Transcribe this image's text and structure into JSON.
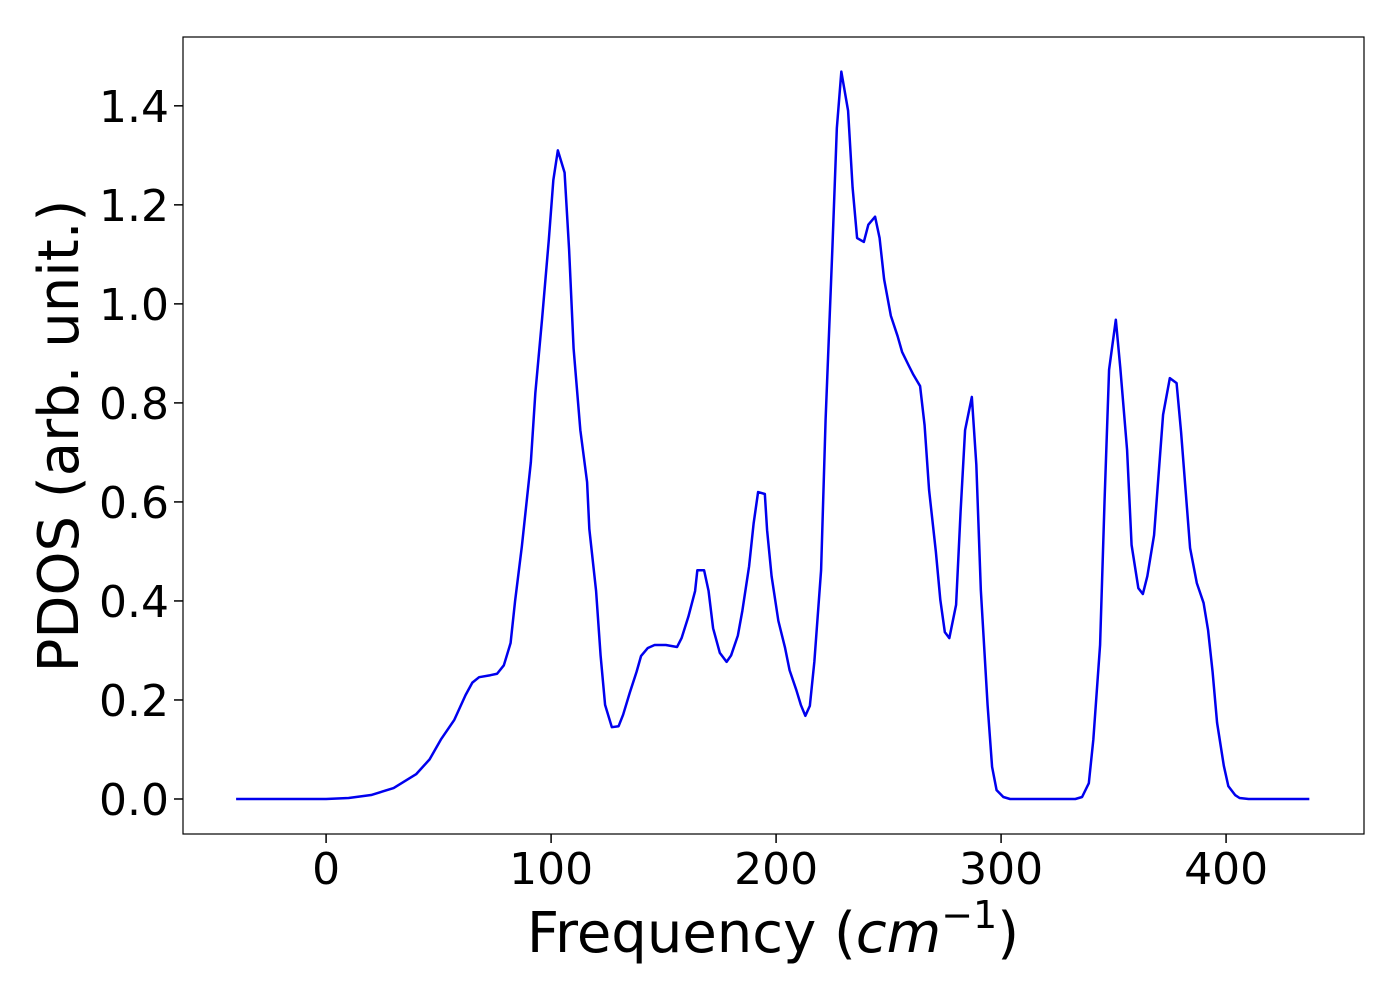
{
  "chart_data": {
    "type": "line",
    "xlabel": [
      "Frequency (",
      "cm",
      "−1",
      ")"
    ],
    "ylabel": "PDOS (arb. unit.)",
    "xlim": [
      -63.6,
      461.3
    ],
    "ylim": [
      -0.0707,
      1.539
    ],
    "xticks": [
      0,
      100,
      200,
      300,
      400
    ],
    "yticks": [
      {
        "value": 0,
        "label": "0.0"
      },
      0.2,
      0.4,
      0.6,
      0.8,
      {
        "value": 1,
        "label": "1.0"
      },
      1.2,
      1.4
    ],
    "series": [
      {
        "color": "#0000ee",
        "x": [
          -40,
          0,
          10,
          20,
          30,
          40,
          46,
          51,
          57,
          62,
          65,
          68,
          73,
          76,
          79,
          82,
          84,
          87,
          91,
          93,
          96,
          99,
          101,
          103,
          106,
          108,
          110,
          113,
          116,
          117,
          120,
          122,
          124,
          127,
          130,
          132,
          135,
          138,
          140,
          143,
          146,
          151,
          156,
          158,
          161,
          164,
          165,
          168,
          170,
          172,
          175,
          178,
          180,
          183,
          185,
          188,
          190,
          192,
          195,
          196,
          198,
          201,
          204,
          206,
          209,
          211,
          213,
          215,
          217,
          220,
          222,
          225,
          227,
          229,
          232,
          234,
          236,
          239,
          241,
          244,
          246,
          248,
          251,
          254,
          256,
          259,
          261,
          264,
          266,
          268,
          271,
          273,
          275,
          277,
          280,
          282,
          284,
          287,
          289,
          291,
          294,
          296,
          298,
          301,
          304,
          333,
          336,
          339,
          341,
          344,
          346,
          348,
          351,
          353,
          356,
          358,
          361,
          363,
          365,
          368,
          370,
          372,
          375,
          378,
          380,
          382,
          384,
          387,
          390,
          392,
          394,
          396,
          399,
          401,
          404,
          406,
          410,
          437
        ],
        "values": [
          0,
          0,
          0.002,
          0.008,
          0.022,
          0.05,
          0.08,
          0.12,
          0.16,
          0.21,
          0.235,
          0.246,
          0.25,
          0.253,
          0.27,
          0.315,
          0.4,
          0.51,
          0.68,
          0.82,
          0.97,
          1.13,
          1.25,
          1.31,
          1.265,
          1.11,
          0.91,
          0.745,
          0.64,
          0.545,
          0.42,
          0.29,
          0.19,
          0.145,
          0.147,
          0.17,
          0.215,
          0.257,
          0.289,
          0.305,
          0.311,
          0.311,
          0.307,
          0.325,
          0.368,
          0.42,
          0.462,
          0.462,
          0.42,
          0.345,
          0.295,
          0.277,
          0.29,
          0.33,
          0.38,
          0.47,
          0.556,
          0.62,
          0.616,
          0.543,
          0.45,
          0.36,
          0.305,
          0.26,
          0.22,
          0.19,
          0.168,
          0.188,
          0.277,
          0.462,
          0.766,
          1.11,
          1.355,
          1.469,
          1.39,
          1.235,
          1.133,
          1.125,
          1.16,
          1.176,
          1.133,
          1.05,
          0.976,
          0.935,
          0.903,
          0.875,
          0.857,
          0.834,
          0.755,
          0.624,
          0.5,
          0.402,
          0.337,
          0.325,
          0.392,
          0.58,
          0.745,
          0.812,
          0.675,
          0.422,
          0.19,
          0.065,
          0.018,
          0.004,
          0,
          0,
          0.004,
          0.032,
          0.12,
          0.311,
          0.604,
          0.867,
          0.968,
          0.87,
          0.705,
          0.513,
          0.426,
          0.414,
          0.45,
          0.533,
          0.655,
          0.776,
          0.85,
          0.84,
          0.741,
          0.624,
          0.507,
          0.436,
          0.396,
          0.341,
          0.257,
          0.154,
          0.067,
          0.026,
          0.008,
          0.002,
          0,
          0
        ]
      }
    ]
  }
}
